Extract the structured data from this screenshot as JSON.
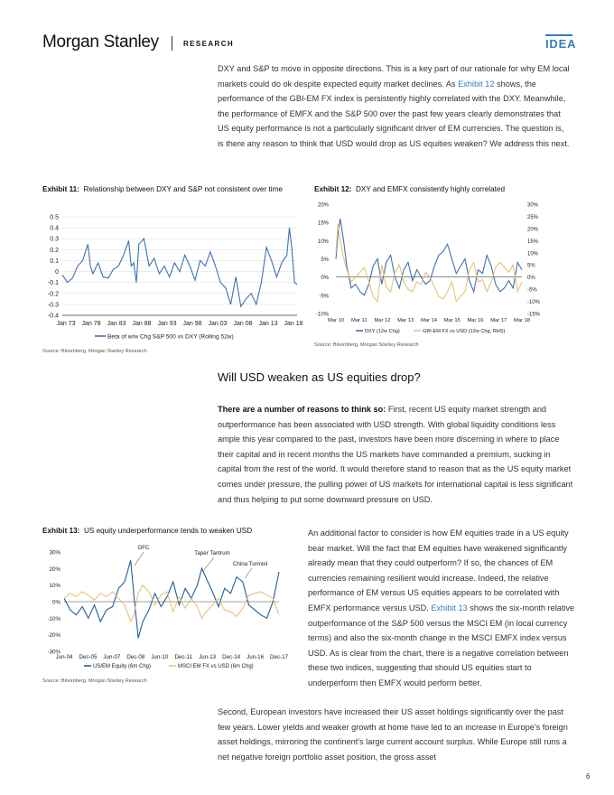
{
  "header": {
    "brand": "Morgan Stanley",
    "section": "RESEARCH",
    "tag": "IDEA"
  },
  "intro_paragraph": {
    "part1": "DXY and S&P to move in opposite directions. This is a key part of our rationale for why EM local markets could do ok despite expected equity market declines. As ",
    "link": "Exhibit 12",
    "part2": " shows, the performance of the GBI-EM FX index is persistently highly correlated with the DXY. Meanwhile, the performance of EMFX and the S&P 500 over the past few years clearly demonstrates that US equity performance is not a particularly significant driver of EM currencies. The question is, is there any reason to think that USD would drop as US equities weaken? We address this next."
  },
  "exhibit11": {
    "label": "Exhibit 11:",
    "title": "Relationship between DXY and S&P not consistent over time",
    "source": "Source: Bloomberg, Morgan Stanley Research",
    "chart_data": {
      "type": "line",
      "y_ticks": [
        "0.5",
        "0.4",
        "0.3",
        "0.2",
        "0.1",
        "0",
        "-0.1",
        "-0.2",
        "-0.3",
        "-0.4"
      ],
      "ylim": [
        -0.4,
        0.5
      ],
      "x_ticks": [
        "Jan 73",
        "Jan 78",
        "Jan 83",
        "Jan 88",
        "Jan 93",
        "Jan 98",
        "Jan 03",
        "Jan 08",
        "Jan 13",
        "Jan 18"
      ],
      "xlim": [
        1973,
        2019
      ],
      "series": [
        {
          "name": "Beta of w/w  Chg S&P 500 vs DXY (Rolling 52w)",
          "color": "#3f70b0",
          "x": [
            1973,
            1974,
            1975,
            1976,
            1977,
            1978,
            1978.5,
            1979,
            1980,
            1981,
            1982,
            1983,
            1984,
            1985,
            1986,
            1986.5,
            1987,
            1987.5,
            1988,
            1989,
            1990,
            1991,
            1992,
            1993,
            1994,
            1995,
            1996,
            1997,
            1998,
            1999,
            2000,
            2001,
            2002,
            2003,
            2004,
            2005,
            2006,
            2007,
            2008,
            2009,
            2010,
            2011,
            2012,
            2013,
            2014,
            2015,
            2016,
            2017,
            2017.5,
            2018,
            2018.5,
            2019
          ],
          "y": [
            -0.03,
            -0.1,
            -0.06,
            0.05,
            0.1,
            0.25,
            0.05,
            -0.02,
            0.08,
            -0.05,
            -0.06,
            0.02,
            0.05,
            0.15,
            0.28,
            0.05,
            0.08,
            -0.1,
            0.25,
            0.3,
            0.05,
            0.12,
            -0.02,
            0.05,
            -0.05,
            0.08,
            0.0,
            0.15,
            0.05,
            -0.08,
            0.1,
            0.05,
            0.18,
            0.05,
            -0.1,
            -0.15,
            -0.3,
            -0.05,
            -0.32,
            -0.25,
            -0.2,
            -0.3,
            -0.1,
            0.22,
            0.1,
            -0.05,
            0.08,
            0.15,
            0.4,
            0.2,
            -0.1,
            -0.12
          ]
        }
      ]
    }
  },
  "exhibit12": {
    "label": "Exhibit 12:",
    "title": "DXY and EMFX consistently highly correlated",
    "source": "Source: Bloomberg, Morgan Stanley Research",
    "chart_data": {
      "type": "line",
      "y_left_ticks": [
        "20%",
        "15%",
        "10%",
        "5%",
        "0%",
        "-5%",
        "-10%"
      ],
      "y_left_lim": [
        -10,
        20
      ],
      "y_right_ticks": [
        "30%",
        "25%",
        "20%",
        "15%",
        "10%",
        "5%",
        "0%",
        "-5%",
        "-10%",
        "-15%"
      ],
      "y_right_lim": [
        -15,
        30
      ],
      "x_ticks": [
        "Mar 10",
        "Mar 11",
        "Mar 12",
        "Mar 13",
        "Mar 14",
        "Mar 15",
        "Mar 16",
        "Mar 17",
        "Mar 18"
      ],
      "xlim": [
        2010.0,
        2018.5
      ],
      "series": [
        {
          "name": "DXY (12w Chg)",
          "color": "#3f70b0",
          "axis": "left",
          "x": [
            2010.0,
            2010.1,
            2010.2,
            2010.35,
            2010.5,
            2010.7,
            2010.9,
            2011.1,
            2011.3,
            2011.5,
            2011.7,
            2011.9,
            2012.1,
            2012.3,
            2012.5,
            2012.7,
            2012.9,
            2013.1,
            2013.3,
            2013.5,
            2013.7,
            2013.9,
            2014.1,
            2014.3,
            2014.5,
            2014.7,
            2014.9,
            2015.1,
            2015.3,
            2015.5,
            2015.7,
            2015.9,
            2016.1,
            2016.3,
            2016.5,
            2016.7,
            2016.9,
            2017.1,
            2017.3,
            2017.5,
            2017.7,
            2017.9,
            2018.1,
            2018.3,
            2018.5
          ],
          "y": [
            5,
            12,
            16,
            10,
            3,
            -3,
            -2,
            -4,
            -5,
            -2,
            3,
            5,
            -2,
            4,
            6,
            0,
            -3,
            2,
            4,
            -1,
            2,
            0,
            -2,
            -1,
            3,
            6,
            7,
            9,
            5,
            1,
            3,
            5,
            -1,
            -4,
            2,
            1,
            6,
            3,
            -2,
            -4,
            -3,
            -1,
            -3,
            4,
            2
          ]
        },
        {
          "name": "GBI-EM FX vs USD (12w Chg, RHS)",
          "color": "#e6c27a",
          "axis": "right",
          "x": [
            2010.0,
            2010.1,
            2010.2,
            2010.35,
            2010.5,
            2010.7,
            2010.9,
            2011.1,
            2011.3,
            2011.5,
            2011.7,
            2011.9,
            2012.1,
            2012.3,
            2012.5,
            2012.7,
            2012.9,
            2013.1,
            2013.3,
            2013.5,
            2013.7,
            2013.9,
            2014.1,
            2014.3,
            2014.5,
            2014.7,
            2014.9,
            2015.1,
            2015.3,
            2015.5,
            2015.7,
            2015.9,
            2016.1,
            2016.3,
            2016.5,
            2016.7,
            2016.9,
            2017.1,
            2017.3,
            2017.5,
            2017.7,
            2017.9,
            2018.1,
            2018.3,
            2018.5
          ],
          "y": [
            10,
            22,
            15,
            8,
            3,
            -2,
            0,
            2,
            4,
            -2,
            -8,
            -10,
            5,
            -4,
            -6,
            2,
            5,
            -2,
            -5,
            -6,
            -2,
            -3,
            2,
            0,
            -4,
            -8,
            -9,
            -6,
            -2,
            -10,
            -8,
            -6,
            3,
            6,
            -2,
            -1,
            -6,
            -2,
            4,
            6,
            4,
            2,
            5,
            -6,
            -2
          ]
        }
      ]
    }
  },
  "section_title": "Will USD weaken as US equities drop?",
  "reasons_paragraph": {
    "bold": "There are a number of reasons to think so:",
    "text": " First, recent US equity market strength and outperformance has been associated with USD strength. With global liquidity conditions less ample this year compared to the past, investors have been more discerning in where to place their capital and in recent months the US markets have commanded a premium, sucking in capital from the rest of the world. It would therefore stand to reason that as the US equity market comes under pressure, the pulling power of US markets for international capital is less significant and thus helping to put some downward pressure on USD."
  },
  "exhibit13": {
    "label": "Exhibit 13:",
    "title": "US equity underperformance tends to weaken USD",
    "source": "Source: Bloomberg, Morgan Stanley Research",
    "annotations": [
      "GFC",
      "Taper Tantrum",
      "China Turmoil"
    ],
    "chart_data": {
      "type": "line",
      "y_ticks": [
        "30%",
        "20%",
        "10%",
        "0%",
        "-10%",
        "-20%",
        "-30%"
      ],
      "ylim": [
        -30,
        30
      ],
      "x_ticks": [
        "Jun-04",
        "Dec-05",
        "Jun-07",
        "Dec-08",
        "Jun-10",
        "Dec-11",
        "Jun-13",
        "Dec-14",
        "Jun-16",
        "Dec-17"
      ],
      "xlim": [
        2004.4,
        2018.6
      ],
      "series": [
        {
          "name": "US/EM Equity (6m Chg)",
          "color": "#1f5f99",
          "x": [
            2004.4,
            2004.8,
            2005.2,
            2005.6,
            2006.0,
            2006.4,
            2006.8,
            2007.2,
            2007.6,
            2008.0,
            2008.4,
            2008.8,
            2009.0,
            2009.3,
            2009.6,
            2010.0,
            2010.4,
            2010.8,
            2011.2,
            2011.6,
            2012.0,
            2012.4,
            2012.8,
            2013.2,
            2013.5,
            2013.8,
            2014.2,
            2014.6,
            2015.0,
            2015.4,
            2015.8,
            2016.2,
            2016.6,
            2017.0,
            2017.4,
            2017.8,
            2018.2,
            2018.6
          ],
          "y": [
            2,
            -5,
            -8,
            -3,
            -10,
            -2,
            -12,
            -5,
            -3,
            8,
            12,
            25,
            5,
            -22,
            -12,
            -5,
            5,
            -3,
            3,
            12,
            -2,
            8,
            2,
            10,
            20,
            14,
            6,
            -3,
            8,
            5,
            15,
            12,
            -2,
            -5,
            -8,
            -10,
            0,
            18
          ]
        },
        {
          "name": "MSCI EM FX vs USD (6m Chg)",
          "color": "#e6c27a",
          "x": [
            2004.4,
            2004.8,
            2005.2,
            2005.6,
            2006.0,
            2006.4,
            2006.8,
            2007.2,
            2007.6,
            2008.0,
            2008.4,
            2008.8,
            2009.0,
            2009.3,
            2009.6,
            2010.0,
            2010.4,
            2010.8,
            2011.2,
            2011.6,
            2012.0,
            2012.4,
            2012.8,
            2013.2,
            2013.5,
            2013.8,
            2014.2,
            2014.6,
            2015.0,
            2015.4,
            2015.8,
            2016.2,
            2016.6,
            2017.0,
            2017.4,
            2017.8,
            2018.2,
            2018.6
          ],
          "y": [
            2,
            5,
            3,
            6,
            4,
            1,
            5,
            3,
            6,
            2,
            -2,
            -12,
            -8,
            5,
            10,
            6,
            -2,
            4,
            6,
            -6,
            3,
            -4,
            2,
            -3,
            -10,
            -6,
            -2,
            2,
            -5,
            -6,
            -9,
            -4,
            4,
            5,
            6,
            4,
            2,
            -8
          ]
        }
      ]
    }
  },
  "side_paragraph": {
    "part1": "An additional factor to consider is how EM equities trade in a US equity bear market. Will the fact that EM equities have weakened significantly already mean that they could outperform? If so, the chances of EM currencies remaining resilient would increase. Indeed, the relative performance of EM versus US equities appears to be correlated with EMFX performance versus USD. ",
    "link": "Exhibit 13",
    "part2": " shows the six-month relative outperformance of the S&P 500 versus the MSCI EM (in local currency terms) and also the six-month change in the MSCI EMFX index versus USD. As is clear from the chart, there is a negative correlation between these two indices, suggesting that should US equities start to underperform then EMFX would perform better."
  },
  "final_paragraph": "Second, European investors have increased their US asset holdings significantly over the past few years. Lower yields and weaker growth at home have led to an increase in Europe's foreign asset holdings, mirroring the continent's large current account surplus. While Europe still runs a net negative foreign portfolio asset position, the gross asset",
  "page_number": "6"
}
